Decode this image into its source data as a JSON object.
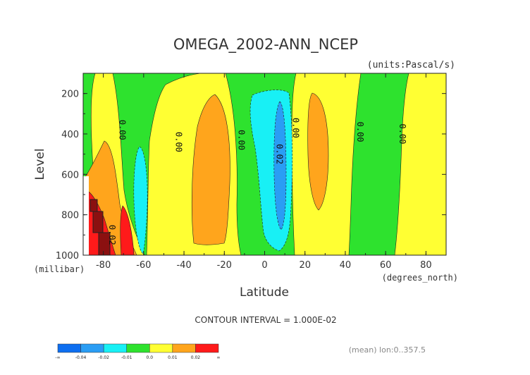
{
  "chart_data": {
    "type": "heatmap",
    "subtype": "filled-contour",
    "title": "OMEGA_2002-ANN_NCEP",
    "units": "(units:Pascal/s)",
    "ylabel": "Level",
    "ylabel_unit": "(millibar)",
    "xlabel": "Latitude",
    "xlabel_unit": "(degrees_north)",
    "xlim": [
      -90,
      90
    ],
    "ylim": [
      1000,
      100
    ],
    "x_ticks": [
      -80,
      -60,
      -40,
      -20,
      0,
      20,
      40,
      60,
      80
    ],
    "x_tick_labels": [
      "-80",
      "-60",
      "-40",
      "-20",
      "0",
      "20",
      "40",
      "60",
      "80"
    ],
    "y_ticks": [
      200,
      400,
      600,
      800,
      1000
    ],
    "y_tick_labels": [
      "200",
      "400",
      "600",
      "800",
      "1000"
    ],
    "contour_interval": "CONTOUR INTERVAL = 1.000E-02",
    "mean_note": "(mean) lon:0..357.5",
    "contour_labels": [
      {
        "text": "0.00",
        "lat": -72,
        "level": 380
      },
      {
        "text": "0.00",
        "lat": -44,
        "level": 440
      },
      {
        "text": "0.00",
        "lat": -13,
        "level": 430
      },
      {
        "text": "0.02",
        "lat": 6,
        "level": 500
      },
      {
        "text": "0.00",
        "lat": 14,
        "level": 370
      },
      {
        "text": "0.00",
        "lat": 46,
        "level": 390
      },
      {
        "text": "0.00",
        "lat": 67,
        "level": 400
      },
      {
        "text": "0.02",
        "lat": -77,
        "level": 900
      }
    ],
    "legend": {
      "colors": [
        "#0d6ef0",
        "#2a9df4",
        "#18f0f5",
        "#2ee22e",
        "#ffff33",
        "#ffa51c",
        "#ff1a1a"
      ],
      "labels": [
        "-∞",
        "-0.04",
        "-0.02",
        "-0.01",
        "0.0",
        "0.01",
        "0.02",
        "∞"
      ]
    }
  }
}
